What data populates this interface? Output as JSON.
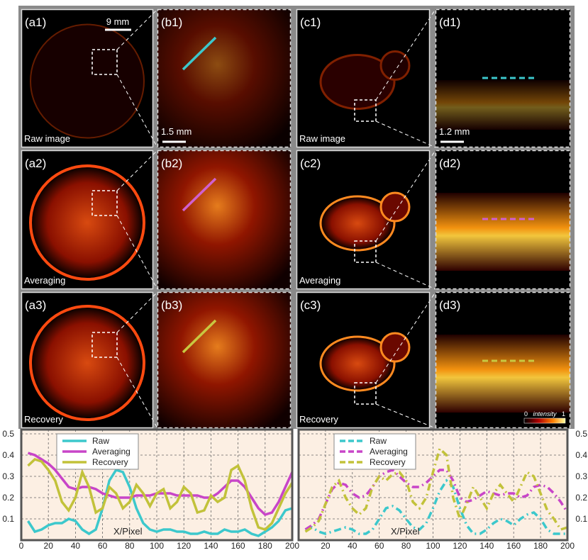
{
  "panels": [
    {
      "label": "(a1)",
      "caption": "Raw image",
      "scale_bar": "9 mm"
    },
    {
      "label": "(b1)",
      "scale_bar": "1.5 mm"
    },
    {
      "label": "(c1)",
      "caption": "Raw image"
    },
    {
      "label": "(d1)",
      "scale_bar": "1.2 mm"
    },
    {
      "label": "(a2)",
      "caption": "Averaging"
    },
    {
      "label": "(b2)"
    },
    {
      "label": "(c2)",
      "caption": "Averaging"
    },
    {
      "label": "(d2)"
    },
    {
      "label": "(a3)",
      "caption": "Recovery"
    },
    {
      "label": "(b3)"
    },
    {
      "label": "(c3)",
      "caption": "Recovery"
    },
    {
      "label": "(d3)",
      "colorbar": {
        "min": 0,
        "title": "intensity",
        "max": 1
      }
    }
  ],
  "chart_data": [
    {
      "type": "line",
      "xlabel": "X/Pixel",
      "linestyle": "solid",
      "grid": true,
      "legend": "upper left",
      "yaxis_side": "left",
      "xlim": [
        0,
        200
      ],
      "xticks": [
        0,
        20,
        40,
        60,
        80,
        100,
        120,
        140,
        160,
        180,
        200
      ],
      "ylim": [
        0,
        0.52
      ],
      "yticks": [
        0.1,
        0.2,
        0.3,
        0.4,
        0.5
      ],
      "x": [
        5,
        10,
        15,
        20,
        25,
        30,
        35,
        40,
        45,
        50,
        55,
        60,
        65,
        70,
        75,
        80,
        85,
        90,
        95,
        100,
        105,
        110,
        115,
        120,
        125,
        130,
        135,
        140,
        145,
        150,
        155,
        160,
        165,
        170,
        175,
        180,
        185,
        190,
        195,
        200
      ],
      "series": [
        {
          "name": "Raw",
          "color": "#3cc8cc",
          "values": [
            0.09,
            0.04,
            0.05,
            0.07,
            0.08,
            0.08,
            0.1,
            0.09,
            0.05,
            0.03,
            0.05,
            0.15,
            0.28,
            0.33,
            0.32,
            0.25,
            0.15,
            0.08,
            0.05,
            0.04,
            0.05,
            0.05,
            0.04,
            0.04,
            0.03,
            0.03,
            0.04,
            0.03,
            0.03,
            0.05,
            0.04,
            0.04,
            0.05,
            0.03,
            0.02,
            0.04,
            0.06,
            0.09,
            0.14,
            0.15
          ]
        },
        {
          "name": "Averaging",
          "color": "#c845c8",
          "values": [
            0.41,
            0.4,
            0.38,
            0.36,
            0.33,
            0.29,
            0.25,
            0.24,
            0.25,
            0.25,
            0.24,
            0.22,
            0.21,
            0.2,
            0.2,
            0.2,
            0.21,
            0.21,
            0.21,
            0.22,
            0.22,
            0.22,
            0.21,
            0.21,
            0.21,
            0.21,
            0.2,
            0.2,
            0.22,
            0.25,
            0.28,
            0.28,
            0.25,
            0.2,
            0.15,
            0.12,
            0.13,
            0.18,
            0.25,
            0.32
          ]
        },
        {
          "name": "Recovery",
          "color": "#c2c23a",
          "values": [
            0.35,
            0.38,
            0.37,
            0.33,
            0.28,
            0.18,
            0.14,
            0.2,
            0.32,
            0.25,
            0.13,
            0.15,
            0.25,
            0.22,
            0.15,
            0.18,
            0.26,
            0.22,
            0.16,
            0.22,
            0.24,
            0.15,
            0.18,
            0.25,
            0.22,
            0.13,
            0.14,
            0.21,
            0.18,
            0.2,
            0.33,
            0.35,
            0.28,
            0.15,
            0.06,
            0.05,
            0.08,
            0.15,
            0.22,
            0.27
          ]
        }
      ]
    },
    {
      "type": "line",
      "xlabel": "X/Pixel",
      "linestyle": "dashed",
      "grid": true,
      "legend": "upper left",
      "yaxis_side": "right",
      "xlim": [
        0,
        200
      ],
      "xticks": [
        20,
        40,
        60,
        80,
        100,
        120,
        140,
        160,
        180,
        200
      ],
      "ylim": [
        0,
        0.52
      ],
      "yticks": [
        0.1,
        0.2,
        0.3,
        0.4,
        0.5
      ],
      "x": [
        5,
        10,
        15,
        20,
        25,
        30,
        35,
        40,
        45,
        50,
        55,
        60,
        65,
        70,
        75,
        80,
        85,
        90,
        95,
        100,
        105,
        110,
        115,
        120,
        125,
        130,
        135,
        140,
        145,
        150,
        155,
        160,
        165,
        170,
        175,
        180,
        185,
        190,
        195,
        200
      ],
      "series": [
        {
          "name": "Raw",
          "color": "#3cc8cc",
          "values": [
            0.05,
            0.06,
            0.04,
            0.03,
            0.04,
            0.05,
            0.06,
            0.05,
            0.03,
            0.03,
            0.05,
            0.1,
            0.15,
            0.16,
            0.14,
            0.1,
            0.06,
            0.05,
            0.08,
            0.15,
            0.23,
            0.28,
            0.25,
            0.15,
            0.07,
            0.03,
            0.03,
            0.05,
            0.08,
            0.1,
            0.09,
            0.07,
            0.1,
            0.12,
            0.13,
            0.1,
            0.05,
            0.03,
            0.03,
            0.03
          ]
        },
        {
          "name": "Averaging",
          "color": "#c845c8",
          "values": [
            0.05,
            0.07,
            0.1,
            0.17,
            0.24,
            0.27,
            0.26,
            0.22,
            0.2,
            0.21,
            0.25,
            0.3,
            0.32,
            0.33,
            0.3,
            0.27,
            0.25,
            0.25,
            0.27,
            0.3,
            0.33,
            0.33,
            0.28,
            0.2,
            0.18,
            0.19,
            0.21,
            0.23,
            0.22,
            0.21,
            0.22,
            0.22,
            0.2,
            0.21,
            0.25,
            0.26,
            0.25,
            0.22,
            0.18,
            0.13
          ]
        },
        {
          "name": "Recovery",
          "color": "#c2c23a",
          "values": [
            0.04,
            0.06,
            0.09,
            0.17,
            0.25,
            0.28,
            0.2,
            0.15,
            0.12,
            0.15,
            0.25,
            0.3,
            0.28,
            0.31,
            0.32,
            0.28,
            0.18,
            0.15,
            0.2,
            0.32,
            0.43,
            0.4,
            0.2,
            0.1,
            0.17,
            0.25,
            0.2,
            0.15,
            0.22,
            0.26,
            0.22,
            0.18,
            0.25,
            0.32,
            0.3,
            0.22,
            0.14,
            0.1,
            0.05,
            0.06
          ]
        }
      ]
    }
  ]
}
